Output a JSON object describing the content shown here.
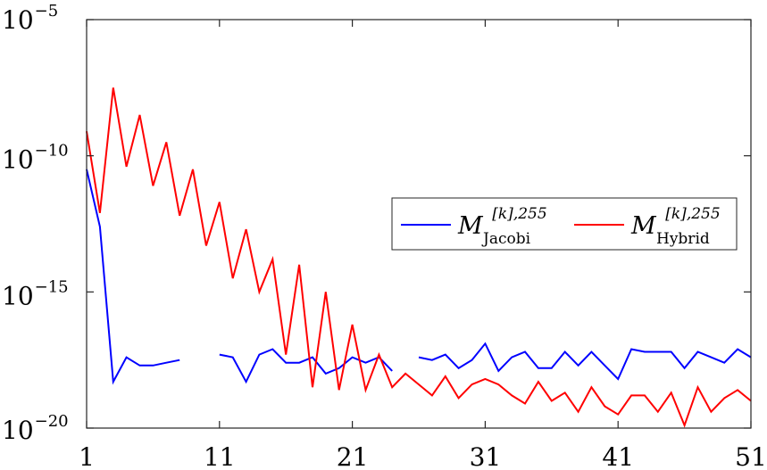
{
  "chart_data": {
    "type": "line",
    "x": [
      1,
      2,
      3,
      4,
      5,
      6,
      7,
      8,
      9,
      10,
      11,
      12,
      13,
      14,
      15,
      16,
      17,
      18,
      19,
      20,
      21,
      22,
      23,
      24,
      25,
      26,
      27,
      28,
      29,
      30,
      31,
      32,
      33,
      34,
      35,
      36,
      37,
      38,
      39,
      40,
      41,
      42,
      43,
      44,
      45,
      46,
      47,
      48,
      49,
      50,
      51
    ],
    "xlim": [
      1,
      51
    ],
    "xticks": [
      1,
      11,
      21,
      31,
      41,
      51
    ],
    "xtick_labels": [
      "1",
      "11",
      "21",
      "31",
      "41",
      "51"
    ],
    "yscale": "log",
    "ylim_exponent": [
      -20,
      -5
    ],
    "yticks_exponent": [
      -5,
      -10,
      -15,
      -20
    ],
    "ytick_base": "10",
    "ytick_exponent_labels": [
      "−5",
      "−10",
      "−15",
      "−20"
    ],
    "grid": false,
    "legend_position": "center-right",
    "series": [
      {
        "name": "M^{[k],255}_{Jacobi}",
        "legend_symbol": "M",
        "legend_superscript": "[k],255",
        "legend_subscript": "Jacobi",
        "color": "#0000ff",
        "log10_values": [
          -10.5,
          -12.6,
          -18.3,
          -17.4,
          -17.7,
          -17.7,
          -17.6,
          -17.5,
          null,
          null,
          -17.3,
          -17.4,
          -18.3,
          -17.3,
          -17.1,
          -17.6,
          -17.6,
          -17.4,
          -18.0,
          -17.8,
          -17.4,
          -17.6,
          -17.4,
          -17.9,
          null,
          -17.4,
          -17.5,
          -17.3,
          -17.8,
          -17.5,
          -16.9,
          -17.9,
          -17.4,
          -17.2,
          -17.8,
          -17.8,
          -17.2,
          -17.7,
          -17.2,
          -17.7,
          -18.2,
          -17.1,
          -17.2,
          -17.2,
          -17.2,
          -17.8,
          -17.2,
          -17.4,
          -17.6,
          -17.1,
          -17.4
        ]
      },
      {
        "name": "M^{[k],255}_{Hybrid}",
        "legend_symbol": "M",
        "legend_superscript": "[k],255",
        "legend_subscript": "Hybrid",
        "color": "#ff0000",
        "log10_values": [
          -9.1,
          -12.1,
          -7.5,
          -10.4,
          -8.5,
          -11.1,
          -9.5,
          -12.2,
          -10.5,
          -13.3,
          -11.7,
          -14.5,
          -12.7,
          -15.0,
          -13.8,
          -17.3,
          -14.0,
          -18.5,
          -15.0,
          -18.6,
          -16.2,
          -18.6,
          -17.3,
          -18.5,
          -18.0,
          -18.4,
          -18.8,
          -18.1,
          -18.9,
          -18.4,
          -18.2,
          -18.4,
          -18.8,
          -19.1,
          -18.3,
          -19.0,
          -18.7,
          -19.4,
          -18.5,
          -19.2,
          -19.5,
          -18.8,
          -18.8,
          -19.4,
          -18.7,
          -19.9,
          -18.5,
          -19.4,
          -18.9,
          -18.6,
          -19.0
        ]
      }
    ]
  }
}
